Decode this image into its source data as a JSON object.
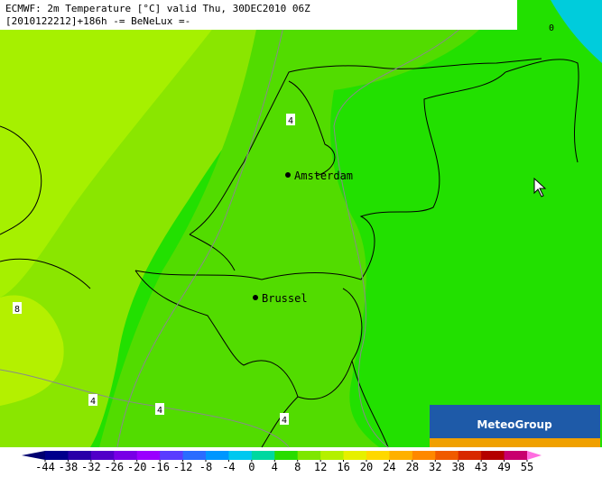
{
  "header": {
    "line1": "ECMWF: 2m Temperature [°C] valid Thu, 30DEC2010 06Z",
    "line2": "[2010122212]+186h -= BeNeLux =-"
  },
  "cities": [
    {
      "name": "Amsterdam"
    },
    {
      "name": "Brussel"
    }
  ],
  "contour_labels": [
    "4",
    "8",
    "4",
    "4",
    "4",
    "0"
  ],
  "logo": "MeteoGroup",
  "colorbar": {
    "ticks": [
      -44,
      -38,
      -32,
      -26,
      -20,
      -16,
      -12,
      -8,
      -4,
      0,
      4,
      8,
      12,
      16,
      20,
      24,
      28,
      32,
      38,
      43,
      49,
      55
    ],
    "colors": [
      "#000070",
      "#00008c",
      "#2800a8",
      "#5000c8",
      "#7800e6",
      "#9a00ff",
      "#5a3cff",
      "#2a6cff",
      "#0096ff",
      "#00c8f0",
      "#00d8a0",
      "#28dc00",
      "#7ee600",
      "#b4f000",
      "#e6f000",
      "#ffd800",
      "#ffb000",
      "#ff8800",
      "#f05a00",
      "#d82800",
      "#b40000",
      "#c8006e",
      "#ff6ee0"
    ]
  }
}
